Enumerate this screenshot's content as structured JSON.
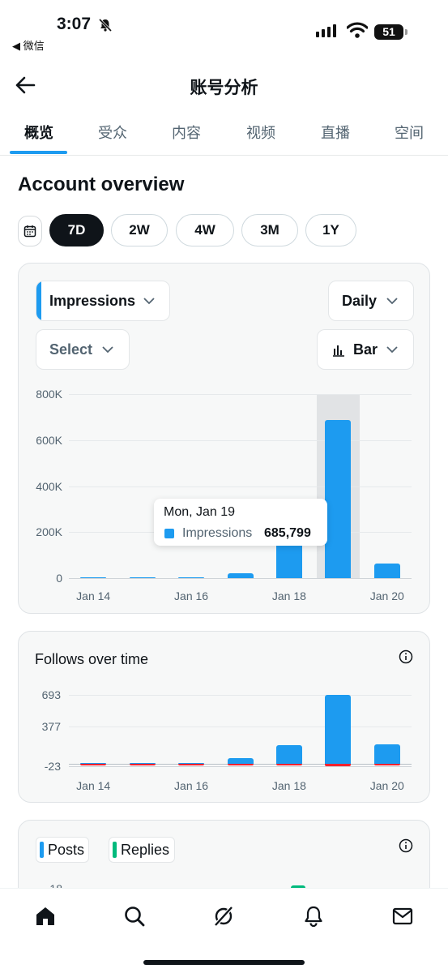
{
  "status_bar": {
    "time": "3:07",
    "back_app": "◀ 微信",
    "battery": "51"
  },
  "header": {
    "title": "账号分析"
  },
  "tabs": [
    {
      "label": "概览",
      "active": true
    },
    {
      "label": "受众",
      "active": false
    },
    {
      "label": "内容",
      "active": false
    },
    {
      "label": "视频",
      "active": false
    },
    {
      "label": "直播",
      "active": false
    },
    {
      "label": "空间",
      "active": false
    }
  ],
  "overview": {
    "title": "Account overview",
    "ranges": [
      {
        "label": "7D",
        "active": true
      },
      {
        "label": "2W",
        "active": false
      },
      {
        "label": "4W",
        "active": false
      },
      {
        "label": "3M",
        "active": false
      },
      {
        "label": "1Y",
        "active": false
      }
    ]
  },
  "impressions_card": {
    "metric_dropdown": "Impressions",
    "interval_dropdown": "Daily",
    "compare_dropdown": "Select",
    "chart_type_dropdown": "Bar",
    "tooltip": {
      "date": "Mon, Jan 19",
      "series": "Impressions",
      "value": "685,799"
    }
  },
  "follows_card": {
    "title": "Follows over time"
  },
  "posts_card": {
    "legend": [
      "Posts",
      "Replies"
    ],
    "first_tick": "18"
  },
  "colors": {
    "accent": "#1d9bf0",
    "negative": "#f4212e",
    "replies": "#00ba7c",
    "highlight": "#e1e3e5"
  },
  "chart_data": [
    {
      "type": "bar",
      "categories": [
        "Jan 14",
        "Jan 15",
        "Jan 16",
        "Jan 17",
        "Jan 18",
        "Jan 19",
        "Jan 20"
      ],
      "x_tick_labels": [
        "Jan 14",
        "Jan 16",
        "Jan 18",
        "Jan 20"
      ],
      "series": [
        {
          "name": "Impressions",
          "values": [
            4000,
            5000,
            4000,
            22000,
            160000,
            685799,
            65000
          ]
        }
      ],
      "ylim": [
        0,
        800000
      ],
      "y_ticks": [
        0,
        200000,
        400000,
        600000,
        800000
      ],
      "y_tick_labels": [
        "0",
        "200K",
        "400K",
        "600K",
        "800K"
      ],
      "highlighted_category": "Jan 19",
      "grid": true
    },
    {
      "type": "bar",
      "title": "Follows over time",
      "categories": [
        "Jan 14",
        "Jan 15",
        "Jan 16",
        "Jan 17",
        "Jan 18",
        "Jan 19",
        "Jan 20"
      ],
      "x_tick_labels": [
        "Jan 14",
        "Jan 16",
        "Jan 18",
        "Jan 20"
      ],
      "series": [
        {
          "values": [
            1,
            1,
            1,
            60,
            190,
            693,
            200
          ]
        },
        {
          "values": [
            -2,
            -1,
            -1,
            -3,
            -8,
            -23,
            -4
          ]
        }
      ],
      "ylim": [
        -23,
        693
      ],
      "y_ticks": [
        -23,
        377,
        693
      ],
      "y_tick_labels": [
        "-23",
        "377",
        "693"
      ],
      "grid": true
    }
  ]
}
